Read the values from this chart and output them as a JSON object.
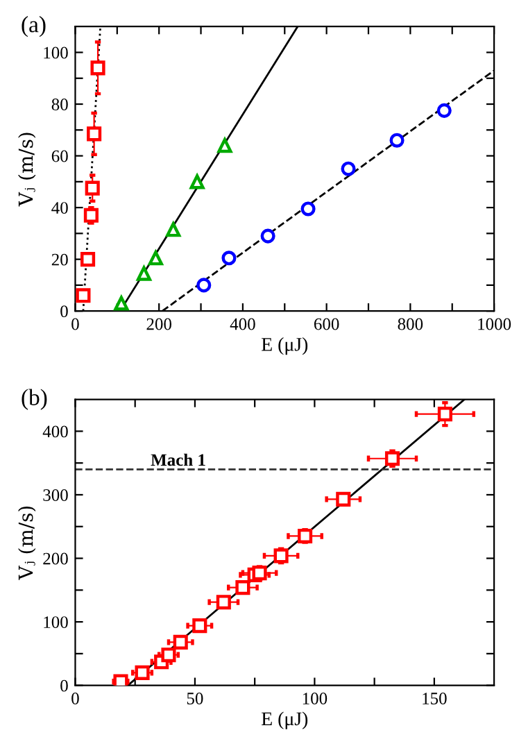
{
  "chart_data": [
    {
      "type": "scatter",
      "title": "(a)",
      "xlabel": "E (μJ)",
      "ylabel": "Vⱼ (m/s)",
      "xlim": [
        0,
        1000
      ],
      "ylim": [
        0,
        110
      ],
      "xticks": [
        0,
        {
          "value": 100,
          "label": null
        },
        200,
        {
          "value": 300,
          "label": null
        },
        400,
        {
          "value": 500,
          "label": null
        },
        600,
        {
          "value": 700,
          "label": null
        },
        800,
        {
          "value": 900,
          "label": null
        },
        1000
      ],
      "yticks": [
        0,
        {
          "value": 10,
          "label": null
        },
        20,
        {
          "value": 30,
          "label": null
        },
        40,
        {
          "value": 50,
          "label": null
        },
        60,
        {
          "value": 70,
          "label": null
        },
        80,
        {
          "value": 90,
          "label": null
        },
        100
      ],
      "grid": false,
      "legend": false,
      "series": [
        {
          "type": "scatter",
          "color": "#ff0000",
          "marker": "square",
          "x": [
            19,
            30,
            38,
            41,
            45,
            54
          ],
          "values": [
            6,
            20,
            37,
            47.5,
            68.5,
            94
          ],
          "errors": [
            2,
            2,
            3,
            5,
            8,
            10
          ]
        },
        {
          "type": "line",
          "color": "#000000",
          "line_style": "dotted",
          "x": [
            19,
            60
          ],
          "values": [
            0,
            110
          ]
        },
        {
          "type": "scatter",
          "color": "#00aa00",
          "marker": "triangle",
          "x": [
            110,
            164,
            192,
            234,
            291,
            357
          ],
          "values": [
            3,
            14.5,
            20.5,
            31.5,
            50,
            64
          ]
        },
        {
          "type": "line",
          "color": "#000000",
          "line_style": "solid",
          "x": [
            107,
            531
          ],
          "values": [
            0,
            110
          ]
        },
        {
          "type": "scatter",
          "color": "#0000ff",
          "marker": "circle",
          "x": [
            307,
            367,
            460,
            556,
            652,
            768,
            881
          ],
          "values": [
            10,
            20.5,
            29,
            39.5,
            55,
            66,
            77.5
          ],
          "xerrors": [
            10,
            10,
            10,
            10,
            10,
            10,
            10
          ]
        },
        {
          "type": "line",
          "color": "#000000",
          "line_style": "dashed",
          "x": [
            208,
            1000
          ],
          "values": [
            0,
            93
          ]
        }
      ]
    },
    {
      "type": "scatter",
      "title": "(b)",
      "xlabel": "E (μJ)",
      "ylabel": "Vⱼ (m/s)",
      "xlim": [
        0,
        175
      ],
      "ylim": [
        0,
        450
      ],
      "xticks": [
        0,
        {
          "value": 25,
          "label": null
        },
        50,
        {
          "value": 75,
          "label": null
        },
        100,
        {
          "value": 125,
          "label": null
        },
        150
      ],
      "yticks": [
        0,
        {
          "value": 50,
          "label": null
        },
        100,
        {
          "value": 150,
          "label": null
        },
        200,
        {
          "value": 250,
          "label": null
        },
        300,
        {
          "value": 350,
          "label": null
        },
        400
      ],
      "grid": false,
      "legend": false,
      "ref_lines": [
        {
          "axis": "y",
          "value": 340,
          "label": "Mach 1",
          "color": "#333333",
          "line_style": "dashed"
        }
      ],
      "series": [
        {
          "type": "scatter",
          "color": "#ff0000",
          "marker": "square",
          "x": [
            19,
            28,
            36,
            39,
            44,
            52,
            62,
            70,
            75,
            77,
            86,
            96,
            112,
            132.5,
            154.5
          ],
          "values": [
            6,
            20,
            37,
            48,
            68,
            94,
            131,
            154,
            174,
            177,
            204,
            235,
            293,
            357,
            427
          ],
          "errors": [
            4,
            4,
            5,
            5,
            6,
            7,
            8,
            9,
            9,
            10,
            11,
            10,
            9,
            12,
            18
          ],
          "xerrors": [
            3,
            4,
            4,
            4,
            5,
            5,
            6,
            6,
            6,
            7,
            7,
            7,
            7,
            10,
            12
          ]
        },
        {
          "type": "line",
          "color": "#000000",
          "line_style": "solid",
          "x": [
            22,
            162.6
          ],
          "values": [
            0,
            450
          ]
        }
      ]
    }
  ]
}
